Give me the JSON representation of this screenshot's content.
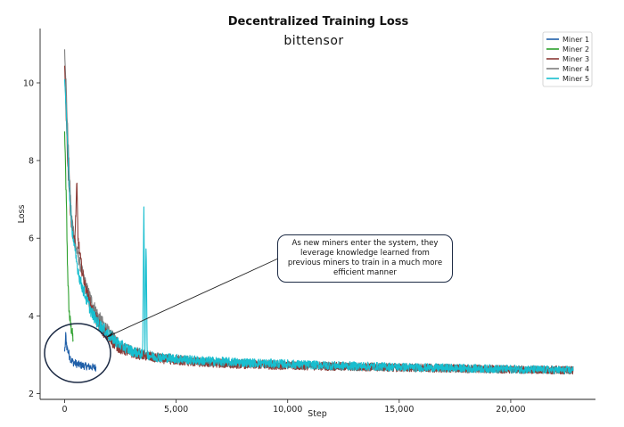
{
  "chart_data": {
    "type": "line",
    "title": "Decentralized Training Loss",
    "brand": "bittensor",
    "xlabel": "Step",
    "ylabel": "Loss",
    "xlim": [
      -1100,
      23800
    ],
    "ylim": [
      1.85,
      11.4
    ],
    "xticks": [
      0,
      5000,
      10000,
      15000,
      20000
    ],
    "xtick_labels": [
      "0",
      "5,000",
      "10,000",
      "15,000",
      "20,000"
    ],
    "yticks": [
      2,
      4,
      6,
      8,
      10
    ],
    "ytick_labels": [
      "2",
      "4",
      "6",
      "8",
      "10"
    ],
    "grid": false,
    "legend_position": "top-right",
    "series": [
      {
        "name": "Miner 1",
        "color": "#1f5fa8",
        "x": [
          0,
          50,
          100,
          200,
          300,
          400,
          600,
          800,
          1000,
          1200,
          1400
        ],
        "y": [
          3.0,
          3.5,
          3.2,
          3.0,
          2.85,
          2.8,
          2.75,
          2.72,
          2.7,
          2.68,
          2.67
        ]
      },
      {
        "name": "Miner 2",
        "color": "#2ca02c",
        "x": [
          0,
          30,
          80,
          120,
          160,
          200,
          260,
          320,
          380
        ],
        "y": [
          8.7,
          8.0,
          6.8,
          5.5,
          4.7,
          4.1,
          3.8,
          3.6,
          3.4
        ]
      },
      {
        "name": "Miner 3",
        "color": "#8c3a36",
        "x": [
          0,
          150,
          300,
          450,
          550,
          600,
          700,
          800,
          1000,
          1200,
          1500,
          2000,
          2500,
          3000,
          4000,
          5000,
          6000,
          8000,
          10000,
          12000,
          14000,
          16000,
          18000,
          20000,
          22800
        ],
        "y": [
          10.4,
          7.8,
          6.4,
          5.8,
          7.4,
          6.0,
          5.5,
          5.1,
          4.6,
          4.2,
          3.8,
          3.4,
          3.15,
          3.05,
          2.92,
          2.85,
          2.8,
          2.75,
          2.72,
          2.7,
          2.68,
          2.66,
          2.64,
          2.62,
          2.6
        ]
      },
      {
        "name": "Miner 4",
        "color": "#7f7f7f",
        "x": [
          0,
          50,
          100,
          200,
          300,
          500,
          700,
          1000,
          1200,
          1500,
          2000,
          2500,
          3000,
          4000,
          5000,
          6000,
          8000,
          10000,
          12000,
          14000,
          16000,
          18000,
          20000,
          22800
        ],
        "y": [
          10.9,
          10.2,
          9.3,
          7.8,
          6.6,
          5.8,
          5.3,
          4.7,
          4.4,
          4.0,
          3.55,
          3.25,
          3.1,
          2.95,
          2.88,
          2.82,
          2.77,
          2.73,
          2.71,
          2.68,
          2.66,
          2.64,
          2.62,
          2.6
        ]
      },
      {
        "name": "Miner 5",
        "color": "#17becf",
        "x": [
          0,
          50,
          100,
          200,
          300,
          500,
          700,
          1000,
          1200,
          1500,
          2000,
          2500,
          3000,
          3500,
          3550,
          3600,
          3650,
          3700,
          4000,
          5000,
          6000,
          8000,
          10000,
          12000,
          14000,
          16000,
          18000,
          20000,
          22800
        ],
        "y": [
          10.0,
          9.6,
          8.8,
          7.4,
          6.4,
          5.5,
          4.9,
          4.4,
          4.1,
          3.8,
          3.5,
          3.25,
          3.1,
          3.0,
          7.0,
          3.05,
          6.0,
          3.0,
          2.95,
          2.9,
          2.85,
          2.8,
          2.76,
          2.72,
          2.7,
          2.67,
          2.65,
          2.63,
          2.6
        ]
      }
    ],
    "annotation": "As new miners enter the system, they leverage knowledge learned from previous miners to train in a much more efficient manner"
  }
}
